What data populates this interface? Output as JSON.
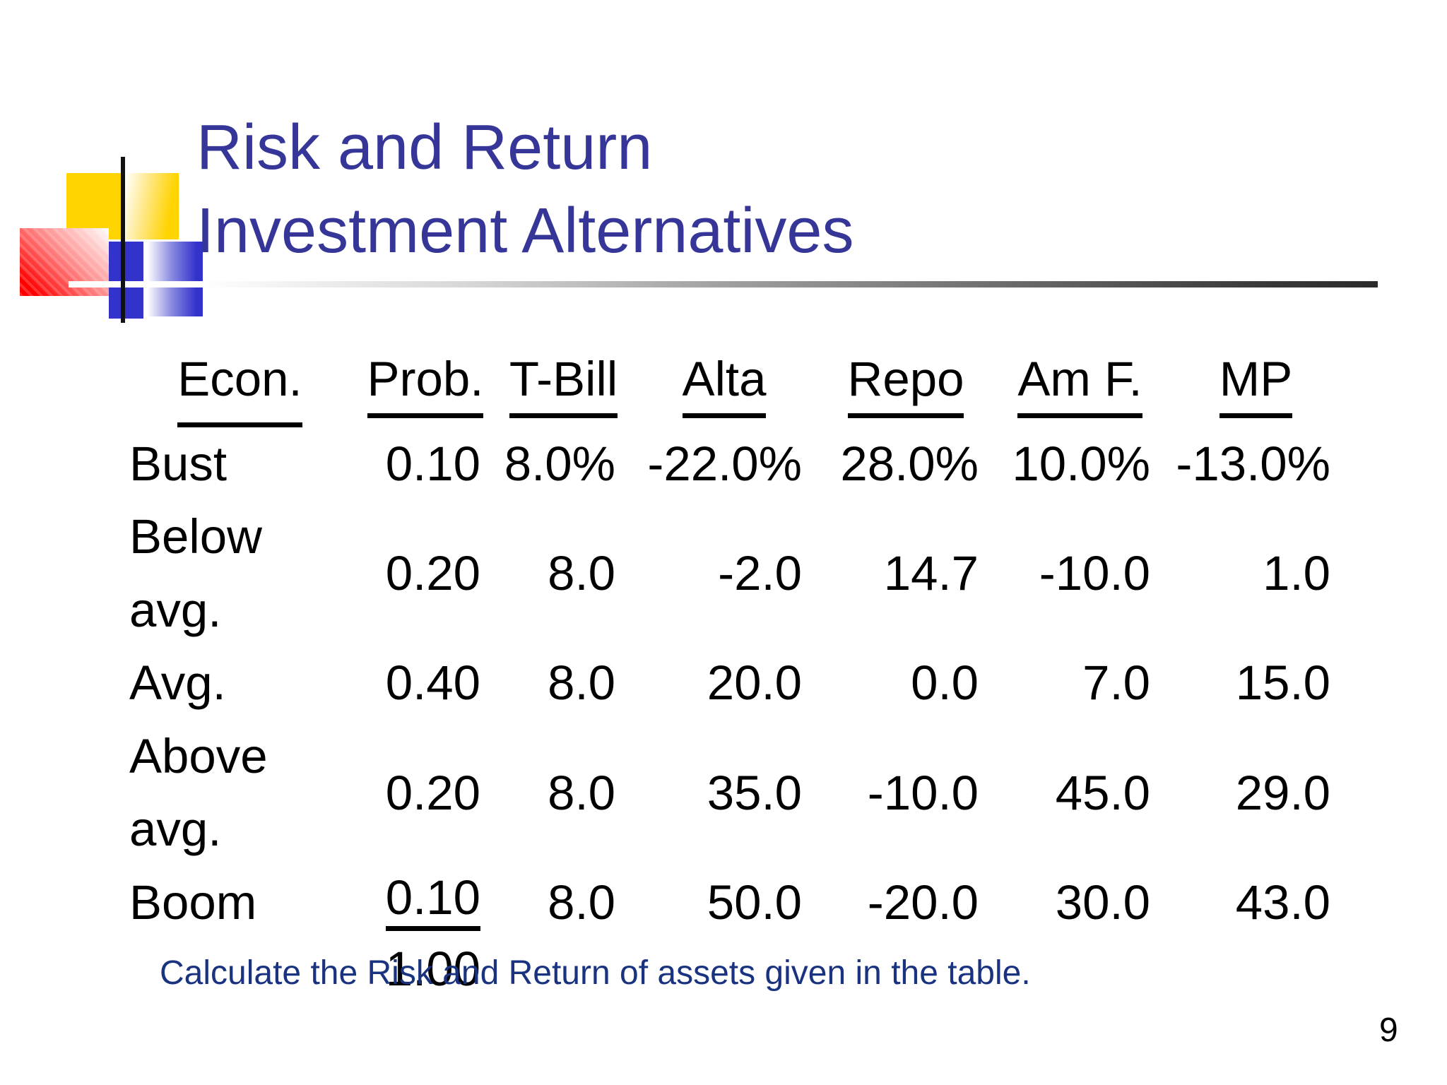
{
  "slide": {
    "title": {
      "line1": "Risk and Return",
      "line2": "Investment Alternatives"
    },
    "footer": "Calculate the Risk and Return of assets given in the table.",
    "page_number": "9"
  },
  "table": {
    "headers": [
      "Econ.",
      "Prob.",
      "T-Bill",
      "Alta",
      "Repo",
      "Am F.",
      "MP"
    ],
    "rows": [
      [
        "Bust",
        "0.10",
        "8.0%",
        "-22.0%",
        "28.0%",
        "10.0%",
        "-13.0%"
      ],
      [
        "Below avg.",
        "0.20",
        "8.0",
        "-2.0",
        "14.7",
        "-10.0",
        "1.0"
      ],
      [
        "Avg.",
        "0.40",
        "8.0",
        "20.0",
        "0.0",
        "7.0",
        "15.0"
      ],
      [
        "Above avg.",
        "0.20",
        "8.0",
        "35.0",
        "-10.0",
        "45.0",
        "29.0"
      ],
      [
        "Boom",
        "0.10",
        "8.0",
        "50.0",
        "-20.0",
        "30.0",
        "43.0"
      ]
    ],
    "total_prob": "1.00"
  },
  "colors": {
    "title_text": "#363699",
    "footer_text": "#1a3380",
    "table_text": "#000000",
    "logo_gold": "#ffd400",
    "logo_red": "#ff0000",
    "logo_blue": "#3333cc",
    "rule_dark": "#2b2b2b"
  }
}
